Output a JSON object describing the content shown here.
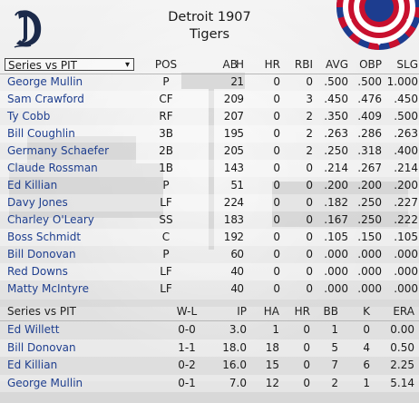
{
  "header": {
    "team_year": "Detroit 1907",
    "team_name": "Tigers"
  },
  "batting": {
    "selector": "Series vs PIT",
    "columns": [
      "POS",
      "AB",
      "H",
      "HR",
      "RBI",
      "AVG",
      "OBP",
      "SLG"
    ],
    "rows": [
      {
        "name": "George Mullin",
        "pos": "P",
        "ab": "2",
        "h": "1",
        "hr": "0",
        "rbi": "0",
        "avg": ".500",
        "obp": ".500",
        "slg": "1.000"
      },
      {
        "name": "Sam Crawford",
        "pos": "CF",
        "ab": "20",
        "h": "9",
        "hr": "0",
        "rbi": "3",
        "avg": ".450",
        "obp": ".476",
        "slg": ".450"
      },
      {
        "name": "Ty Cobb",
        "pos": "RF",
        "ab": "20",
        "h": "7",
        "hr": "0",
        "rbi": "2",
        "avg": ".350",
        "obp": ".409",
        "slg": ".500"
      },
      {
        "name": "Bill Coughlin",
        "pos": "3B",
        "ab": "19",
        "h": "5",
        "hr": "0",
        "rbi": "2",
        "avg": ".263",
        "obp": ".286",
        "slg": ".263"
      },
      {
        "name": "Germany Schaefer",
        "pos": "2B",
        "ab": "20",
        "h": "5",
        "hr": "0",
        "rbi": "2",
        "avg": ".250",
        "obp": ".318",
        "slg": ".400"
      },
      {
        "name": "Claude Rossman",
        "pos": "1B",
        "ab": "14",
        "h": "3",
        "hr": "0",
        "rbi": "0",
        "avg": ".214",
        "obp": ".267",
        "slg": ".214"
      },
      {
        "name": "Ed Killian",
        "pos": "P",
        "ab": "5",
        "h": "1",
        "hr": "0",
        "rbi": "0",
        "avg": ".200",
        "obp": ".200",
        "slg": ".200"
      },
      {
        "name": "Davy Jones",
        "pos": "LF",
        "ab": "22",
        "h": "4",
        "hr": "0",
        "rbi": "0",
        "avg": ".182",
        "obp": ".250",
        "slg": ".227"
      },
      {
        "name": "Charley O'Leary",
        "pos": "SS",
        "ab": "18",
        "h": "3",
        "hr": "0",
        "rbi": "0",
        "avg": ".167",
        "obp": ".250",
        "slg": ".222"
      },
      {
        "name": "Boss Schmidt",
        "pos": "C",
        "ab": "19",
        "h": "2",
        "hr": "0",
        "rbi": "0",
        "avg": ".105",
        "obp": ".150",
        "slg": ".105"
      },
      {
        "name": "Bill Donovan",
        "pos": "P",
        "ab": "6",
        "h": "0",
        "hr": "0",
        "rbi": "0",
        "avg": ".000",
        "obp": ".000",
        "slg": ".000"
      },
      {
        "name": "Red Downs",
        "pos": "LF",
        "ab": "4",
        "h": "0",
        "hr": "0",
        "rbi": "0",
        "avg": ".000",
        "obp": ".000",
        "slg": ".000"
      },
      {
        "name": "Matty McIntyre",
        "pos": "LF",
        "ab": "4",
        "h": "0",
        "hr": "0",
        "rbi": "0",
        "avg": ".000",
        "obp": ".000",
        "slg": ".000"
      }
    ]
  },
  "pitching": {
    "label": "Series vs PIT",
    "columns": [
      "W-L",
      "IP",
      "HA",
      "HR",
      "BB",
      "K",
      "ERA"
    ],
    "rows": [
      {
        "name": "Ed Willett",
        "wl": "0-0",
        "ip": "3.0",
        "ha": "1",
        "hr": "0",
        "bb": "1",
        "k": "0",
        "era": "0.00"
      },
      {
        "name": "Bill Donovan",
        "wl": "1-1",
        "ip": "18.0",
        "ha": "18",
        "hr": "0",
        "bb": "5",
        "k": "4",
        "era": "0.50"
      },
      {
        "name": "Ed Killian",
        "wl": "0-2",
        "ip": "16.0",
        "ha": "15",
        "hr": "0",
        "bb": "7",
        "k": "6",
        "era": "2.25"
      },
      {
        "name": "George Mullin",
        "wl": "0-1",
        "ip": "7.0",
        "ha": "12",
        "hr": "0",
        "bb": "2",
        "k": "1",
        "era": "5.14"
      }
    ]
  },
  "icons": {
    "logo": "old-english-d-logo-icon",
    "bunting": "patriotic-bunting-icon",
    "dropdown": "chevron-down-icon"
  },
  "colors": {
    "player_link": "#1f3f8f",
    "logo_navy": "#1c2a4a",
    "bunting_red": "#c8102e",
    "bunting_blue": "#1d3d8f"
  }
}
